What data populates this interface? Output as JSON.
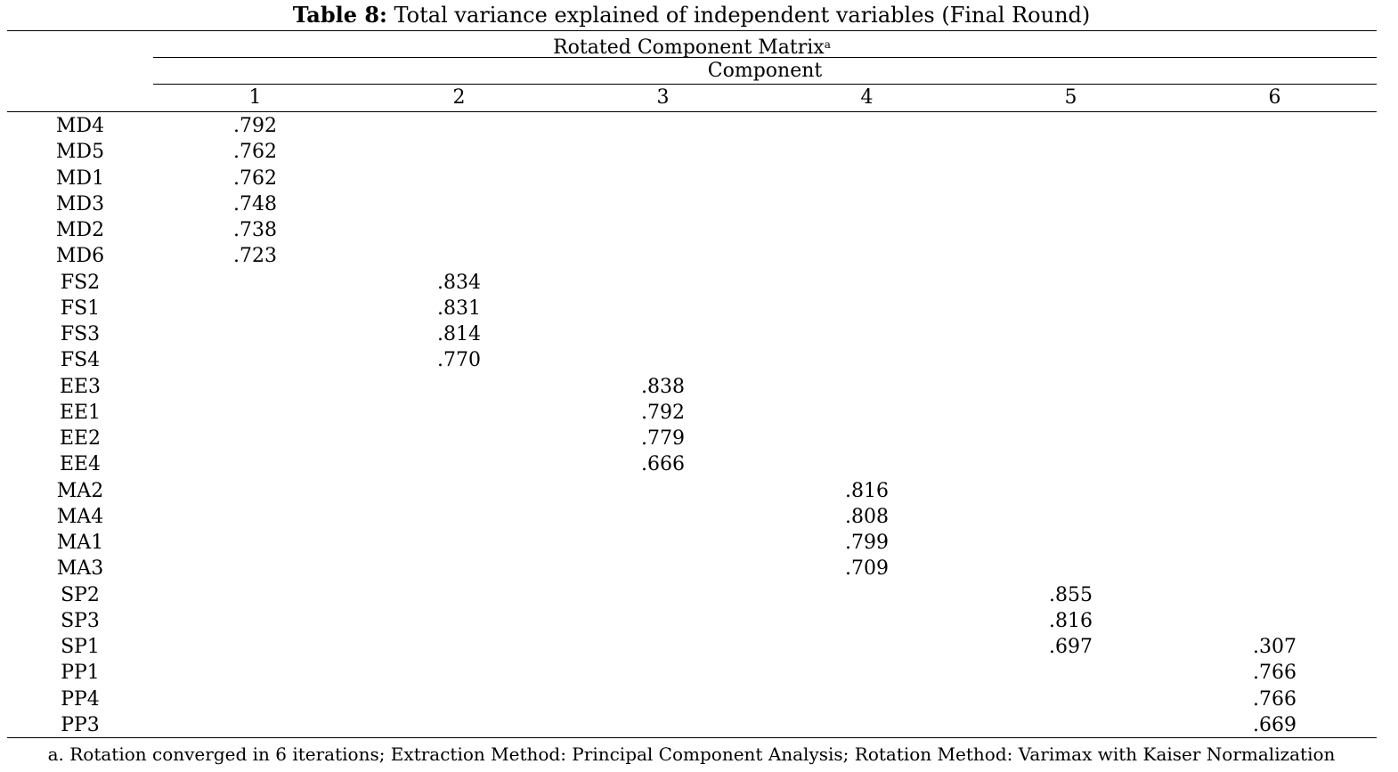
{
  "title": {
    "lead": "Table 8:",
    "text": " Total variance explained of independent variables (Final Round)"
  },
  "matrix_title": "Rotated Component Matrix",
  "matrix_title_note": "a",
  "component_label": "Component",
  "columns": [
    "1",
    "2",
    "3",
    "4",
    "5",
    "6"
  ],
  "rows": [
    {
      "label": "MD4",
      "values": [
        ".792",
        "",
        "",
        "",
        "",
        ""
      ]
    },
    {
      "label": "MD5",
      "values": [
        ".762",
        "",
        "",
        "",
        "",
        ""
      ]
    },
    {
      "label": "MD1",
      "values": [
        ".762",
        "",
        "",
        "",
        "",
        ""
      ]
    },
    {
      "label": "MD3",
      "values": [
        ".748",
        "",
        "",
        "",
        "",
        ""
      ]
    },
    {
      "label": "MD2",
      "values": [
        ".738",
        "",
        "",
        "",
        "",
        ""
      ]
    },
    {
      "label": "MD6",
      "values": [
        ".723",
        "",
        "",
        "",
        "",
        ""
      ]
    },
    {
      "label": "FS2",
      "values": [
        "",
        ".834",
        "",
        "",
        "",
        ""
      ]
    },
    {
      "label": "FS1",
      "values": [
        "",
        ".831",
        "",
        "",
        "",
        ""
      ]
    },
    {
      "label": "FS3",
      "values": [
        "",
        ".814",
        "",
        "",
        "",
        ""
      ]
    },
    {
      "label": "FS4",
      "values": [
        "",
        ".770",
        "",
        "",
        "",
        ""
      ]
    },
    {
      "label": "EE3",
      "values": [
        "",
        "",
        ".838",
        "",
        "",
        ""
      ]
    },
    {
      "label": "EE1",
      "values": [
        "",
        "",
        ".792",
        "",
        "",
        ""
      ]
    },
    {
      "label": "EE2",
      "values": [
        "",
        "",
        ".779",
        "",
        "",
        ""
      ]
    },
    {
      "label": "EE4",
      "values": [
        "",
        "",
        ".666",
        "",
        "",
        ""
      ]
    },
    {
      "label": "MA2",
      "values": [
        "",
        "",
        "",
        ".816",
        "",
        ""
      ]
    },
    {
      "label": "MA4",
      "values": [
        "",
        "",
        "",
        ".808",
        "",
        ""
      ]
    },
    {
      "label": "MA1",
      "values": [
        "",
        "",
        "",
        ".799",
        "",
        ""
      ]
    },
    {
      "label": "MA3",
      "values": [
        "",
        "",
        "",
        ".709",
        "",
        ""
      ]
    },
    {
      "label": "SP2",
      "values": [
        "",
        "",
        "",
        "",
        ".855",
        ""
      ]
    },
    {
      "label": "SP3",
      "values": [
        "",
        "",
        "",
        "",
        ".816",
        ""
      ]
    },
    {
      "label": "SP1",
      "values": [
        "",
        "",
        "",
        "",
        ".697",
        ".307"
      ]
    },
    {
      "label": "PP1",
      "values": [
        "",
        "",
        "",
        "",
        "",
        ".766"
      ]
    },
    {
      "label": "PP4",
      "values": [
        "",
        "",
        "",
        "",
        "",
        ".766"
      ]
    },
    {
      "label": "PP3",
      "values": [
        "",
        "",
        "",
        "",
        "",
        ".669"
      ]
    }
  ],
  "footnote": "a. Rotation converged in 6 iterations; Extraction Method: Principal Component Analysis; Rotation Method: Varimax with Kaiser Normalization"
}
